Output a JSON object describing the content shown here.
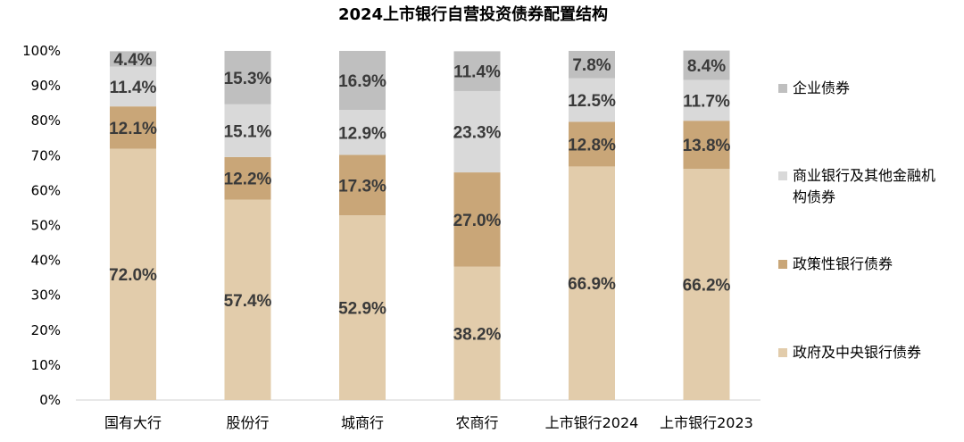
{
  "chart_data": {
    "type": "bar",
    "stacked": true,
    "title": "2024上市银行自营投资债券配置结构",
    "categories": [
      "国有大行",
      "股份行",
      "城商行",
      "农商行",
      "上市银行2024",
      "上市银行2023"
    ],
    "ylim": [
      0,
      100
    ],
    "ytick_labels": [
      "0%",
      "10%",
      "20%",
      "30%",
      "40%",
      "50%",
      "60%",
      "70%",
      "80%",
      "90%",
      "100%"
    ],
    "grid": false,
    "legend_position": "right",
    "series": [
      {
        "name": "政府及中央银行债券",
        "color": "#e2ccab",
        "values": [
          72.0,
          57.4,
          52.9,
          38.2,
          66.9,
          66.2
        ],
        "labels": [
          "72.0%",
          "57.4%",
          "52.9%",
          "38.2%",
          "66.9%",
          "66.2%"
        ]
      },
      {
        "name": "政策性银行债券",
        "color": "#c9a678",
        "values": [
          12.1,
          12.2,
          17.3,
          27.0,
          12.8,
          13.8
        ],
        "labels": [
          "12.1%",
          "12.2%",
          "17.3%",
          "27.0%",
          "12.8%",
          "13.8%"
        ]
      },
      {
        "name": "商业银行及其他金融机构债券",
        "color": "#d9d9d9",
        "values": [
          11.4,
          15.1,
          12.9,
          23.3,
          12.5,
          11.7
        ],
        "labels": [
          "11.4%",
          "15.1%",
          "12.9%",
          "23.3%",
          "12.5%",
          "11.7%"
        ]
      },
      {
        "name": "企业债券",
        "color": "#bfbfbf",
        "values": [
          4.4,
          15.3,
          16.9,
          11.4,
          7.8,
          8.4
        ],
        "labels": [
          "4.4%",
          "15.3%",
          "16.9%",
          "11.4%",
          "7.8%",
          "8.4%"
        ]
      }
    ],
    "legend_order": [
      "企业债券",
      "商业银行及其他金融机构债券",
      "政策性银行债券",
      "政府及中央银行债券"
    ]
  }
}
